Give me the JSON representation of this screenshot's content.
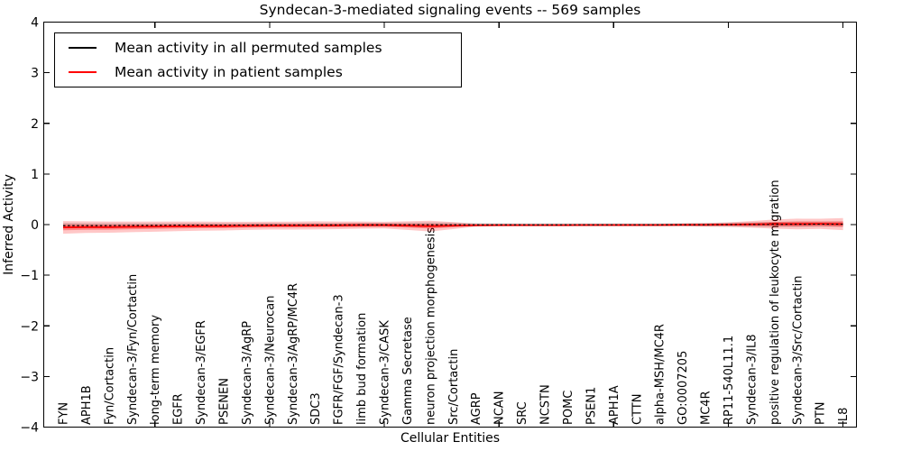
{
  "chart_data": {
    "type": "line",
    "title": "Syndecan-3-mediated signaling events -- 569 samples",
    "xlabel": "Cellular Entities",
    "ylabel": "Inferred Activity",
    "ylim": [
      -4,
      4
    ],
    "ytick_values": [
      4,
      3,
      2,
      1,
      0,
      -1,
      -2,
      -3,
      -4
    ],
    "xtick_category_indices": [
      4,
      9,
      14,
      19,
      24,
      29,
      34
    ],
    "grid": false,
    "legend": {
      "position": "upper left",
      "entries": [
        {
          "label": "Mean activity in all permuted samples",
          "color": "#000000"
        },
        {
          "label": "Mean activity in patient samples",
          "color": "#ff0000"
        }
      ]
    },
    "categories": [
      "FYN",
      "APH1B",
      "Fyn/Cortactin",
      "Syndecan-3/Fyn/Cortactin",
      "long-term memory",
      "EGFR",
      "Syndecan-3/EGFR",
      "PSENEN",
      "Syndecan-3/AgRP",
      "Syndecan-3/Neurocan",
      "Syndecan-3/AgRP/MC4R",
      "SDC3",
      "FGFR/FGF/Syndecan-3",
      "limb bud formation",
      "Syndecan-3/CASK",
      "Gamma Secretase",
      "neuron projection morphogenesis",
      "Src/Cortactin",
      "AGRP",
      "NCAN",
      "SRC",
      "NCSTN",
      "POMC",
      "PSEN1",
      "APH1A",
      "CTTN",
      "alpha-MSH/MC4R",
      "GO:0007205",
      "MC4R",
      "RP11-540L11.1",
      "Syndecan-3/IL8",
      "positive regulation of leukocyte migration",
      "Syndecan-3/Src/Cortactin",
      "PTN",
      "IL8"
    ],
    "series": [
      {
        "name": "Mean activity in all permuted samples",
        "color": "#000000",
        "line_style": "dashed",
        "band_color": "rgba(0,0,0,0.15)",
        "values": [
          -0.02,
          -0.02,
          -0.02,
          -0.015,
          -0.015,
          -0.01,
          -0.01,
          -0.01,
          -0.01,
          -0.008,
          -0.008,
          -0.008,
          -0.006,
          -0.005,
          -0.005,
          -0.005,
          -0.005,
          -0.005,
          -0.004,
          -0.004,
          -0.004,
          -0.004,
          -0.004,
          -0.003,
          -0.003,
          -0.003,
          -0.003,
          -0.002,
          -0.002,
          0.0,
          0.002,
          0.004,
          0.006,
          0.008,
          0.008
        ],
        "band_halfwidth": [
          0.055,
          0.05,
          0.05,
          0.045,
          0.045,
          0.04,
          0.04,
          0.04,
          0.04,
          0.04,
          0.04,
          0.04,
          0.04,
          0.04,
          0.04,
          0.045,
          0.05,
          0.045,
          0.035,
          0.03,
          0.03,
          0.03,
          0.03,
          0.03,
          0.03,
          0.03,
          0.03,
          0.032,
          0.035,
          0.04,
          0.045,
          0.05,
          0.055,
          0.05,
          0.05
        ]
      },
      {
        "name": "Mean activity in patient samples",
        "color": "#ff0000",
        "line_style": "solid",
        "band_color": "rgba(255,0,0,0.22)",
        "band_color_inner": "rgba(255,0,0,0.33)",
        "values": [
          -0.055,
          -0.05,
          -0.05,
          -0.045,
          -0.04,
          -0.035,
          -0.03,
          -0.03,
          -0.025,
          -0.02,
          -0.02,
          -0.015,
          -0.015,
          -0.01,
          -0.01,
          -0.02,
          -0.03,
          -0.02,
          -0.012,
          -0.01,
          -0.01,
          -0.01,
          -0.01,
          -0.008,
          -0.008,
          -0.008,
          -0.008,
          -0.005,
          -0.005,
          0.0,
          0.005,
          0.01,
          0.012,
          0.015,
          0.01
        ],
        "band_halfwidth": [
          0.125,
          0.115,
          0.11,
          0.105,
          0.1,
          0.095,
          0.09,
          0.085,
          0.08,
          0.078,
          0.078,
          0.08,
          0.075,
          0.07,
          0.065,
          0.085,
          0.105,
          0.07,
          0.025,
          0.022,
          0.02,
          0.02,
          0.02,
          0.02,
          0.02,
          0.02,
          0.022,
          0.028,
          0.035,
          0.045,
          0.065,
          0.09,
          0.105,
          0.1,
          0.12
        ]
      }
    ]
  }
}
